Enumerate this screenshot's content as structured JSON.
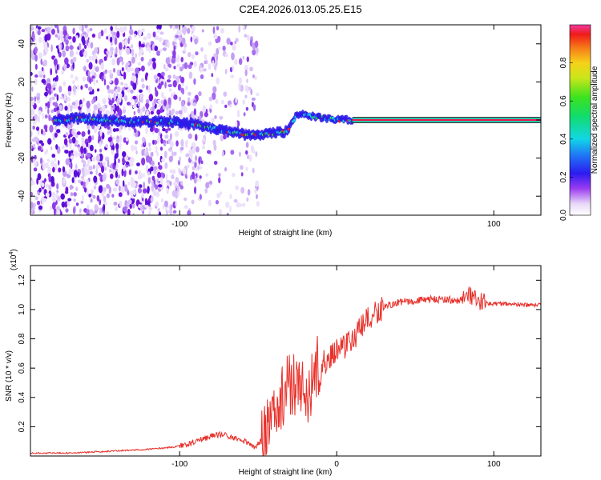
{
  "title": "C2E4.2026.013.05.25.E15",
  "chart_data": [
    {
      "type": "heatmap",
      "name": "spectrogram",
      "xlabel": "Height of straight line (km)",
      "ylabel": "Frequency (Hz)",
      "xlim": [
        -195,
        130
      ],
      "ylim": [
        -50,
        50
      ],
      "xticks": [
        -100,
        0,
        100
      ],
      "xtick_labels": [
        "-100",
        "",
        "100"
      ],
      "yticks": [
        -40,
        -20,
        0,
        20,
        40
      ],
      "ytick_labels": [
        "-40",
        "-20",
        "0",
        "20",
        "40"
      ],
      "ridge": {
        "description_points": [
          [
            -170,
            1
          ],
          [
            -150,
            0
          ],
          [
            -120,
            -1
          ],
          [
            -100,
            -1
          ],
          [
            -85,
            -3
          ],
          [
            -70,
            -6
          ],
          [
            -55,
            -8
          ],
          [
            -40,
            -7
          ],
          [
            -32,
            -6
          ],
          [
            -25,
            3
          ],
          [
            -15,
            2
          ],
          [
            -8,
            1
          ],
          [
            0,
            0
          ],
          [
            10,
            0
          ],
          [
            130,
            0
          ]
        ]
      },
      "colorbar": {
        "label": "Normalized spectral amplitude",
        "range": [
          0,
          1
        ],
        "ticks": [
          0,
          0.2,
          0.4,
          0.6,
          0.8
        ],
        "tick_labels": [
          "0.0",
          "0.2",
          "0.4",
          "0.6",
          "0.8"
        ]
      }
    },
    {
      "type": "line",
      "name": "snr",
      "xlabel": "Height of straight line (km)",
      "ylabel": "SNR (10 * v/v)",
      "multiplier_label": "(x10",
      "multiplier_exp": "4",
      "multiplier_close": ")",
      "xlim": [
        -195,
        130
      ],
      "ylim": [
        0,
        1.3
      ],
      "xticks": [
        -100,
        0,
        100
      ],
      "xtick_labels": [
        "-100",
        "0",
        "100"
      ],
      "yticks": [
        0.2,
        0.4,
        0.6,
        0.8,
        1.0,
        1.2
      ],
      "ytick_labels": [
        "0.2",
        "0.4",
        "0.6",
        "0.8",
        "1.0",
        "1.2"
      ],
      "series": [
        {
          "name": "SNR",
          "color": "#e8302a",
          "x": [
            -195,
            -170,
            -150,
            -130,
            -115,
            -105,
            -95,
            -85,
            -78,
            -72,
            -65,
            -58,
            -52,
            -48,
            -44,
            -40,
            -37,
            -34,
            -31,
            -28,
            -25,
            -22,
            -19,
            -16,
            -13,
            -10,
            -7,
            -4,
            -1,
            2,
            5,
            8,
            12,
            16,
            20,
            25,
            30,
            40,
            50,
            60,
            70,
            78,
            82,
            85,
            88,
            92,
            100,
            110,
            120,
            130
          ],
          "y": [
            0.02,
            0.02,
            0.03,
            0.04,
            0.05,
            0.06,
            0.08,
            0.12,
            0.14,
            0.15,
            0.12,
            0.1,
            0.06,
            0.1,
            0.2,
            0.28,
            0.35,
            0.42,
            0.48,
            0.5,
            0.48,
            0.45,
            0.42,
            0.5,
            0.6,
            0.62,
            0.65,
            0.68,
            0.72,
            0.75,
            0.75,
            0.78,
            0.82,
            0.88,
            0.93,
            0.98,
            1.02,
            1.05,
            1.06,
            1.07,
            1.07,
            1.06,
            1.1,
            1.08,
            1.05,
            1.05,
            1.04,
            1.04,
            1.03,
            1.03
          ]
        }
      ]
    }
  ]
}
